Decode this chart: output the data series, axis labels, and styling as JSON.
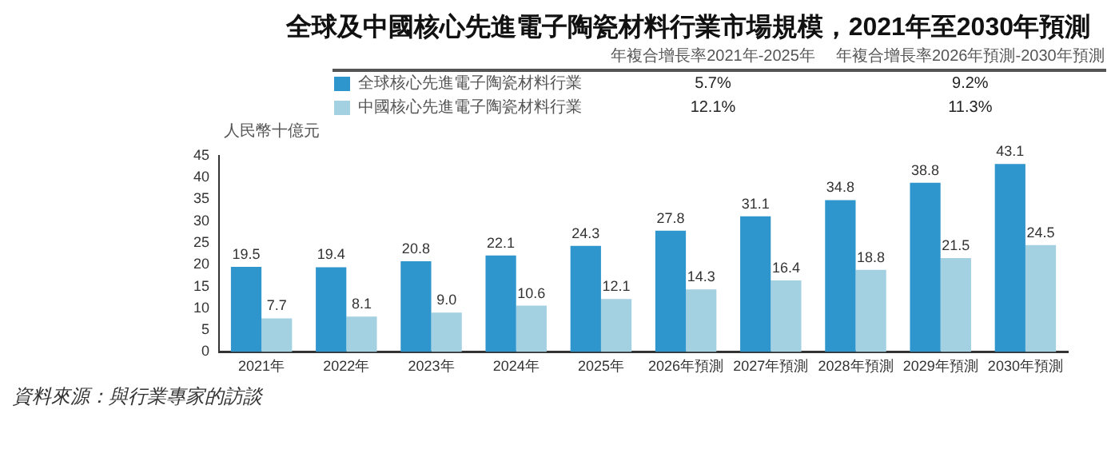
{
  "chart_data": {
    "type": "bar",
    "title": "全球及中國核心先進電子陶瓷材料行業市場規模，2021年至2030年預測",
    "ylabel": "人民幣十億元",
    "categories": [
      "2021年",
      "2022年",
      "2023年",
      "2024年",
      "2025年",
      "2026年預測",
      "2027年預測",
      "2028年預測",
      "2029年預測",
      "2030年預測"
    ],
    "series": [
      {
        "name": "全球核心先進電子陶瓷材料行業",
        "color": "#2e96cc",
        "values": [
          19.5,
          19.4,
          20.8,
          22.1,
          24.3,
          27.8,
          31.1,
          34.8,
          38.8,
          43.1
        ],
        "value_labels": [
          "19.5",
          "19.4",
          "20.8",
          "22.1",
          "24.3",
          "27.8",
          "31.1",
          "34.8",
          "38.8",
          "43.1"
        ]
      },
      {
        "name": "中國核心先進電子陶瓷材料行業",
        "color": "#a3d1e2",
        "values": [
          7.7,
          8.1,
          9.0,
          10.6,
          12.1,
          14.3,
          16.4,
          18.8,
          21.5,
          24.5
        ],
        "value_labels": [
          "7.7",
          "8.1",
          "9.0",
          "10.6",
          "12.1",
          "14.3",
          "16.4",
          "18.8",
          "21.5",
          "24.5"
        ]
      }
    ],
    "ylim": [
      0,
      45
    ],
    "yticks": [
      0,
      5,
      10,
      15,
      20,
      25,
      30,
      35,
      40,
      45
    ],
    "grid": false,
    "legend": "top",
    "annotations": [
      "年複合增長率2021年-2025年",
      "年複合增長率2026年預測-2030年預測",
      "5.7%",
      "9.2%",
      "12.1%",
      "11.3%",
      "資料來源：與行業專家的訪談"
    ]
  }
}
